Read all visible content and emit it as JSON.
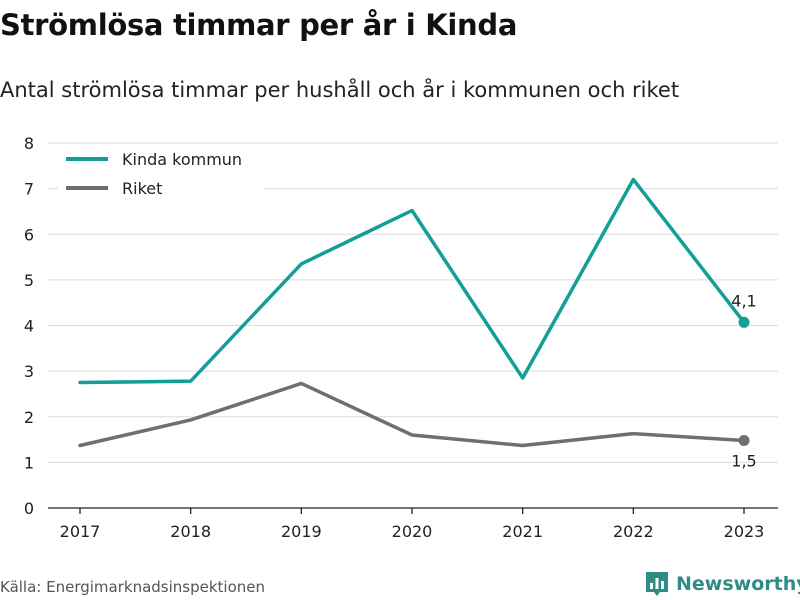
{
  "title": "Strömlösa timmar per år i Kinda",
  "subtitle": "Antal strömlösa timmar per hushåll och år i kommunen och riket",
  "source": "Källa: Energimarknadsinspektionen",
  "brand": {
    "name": "Newsworthy",
    "icon": "bar-chart-logo-icon",
    "color": "#2e8c84"
  },
  "chart_data": {
    "type": "line",
    "x": [
      "2017",
      "2018",
      "2019",
      "2020",
      "2021",
      "2022",
      "2023"
    ],
    "ylim": [
      0,
      8
    ],
    "yticks": [
      "0",
      "1",
      "2",
      "3",
      "4",
      "5",
      "6",
      "7",
      "8"
    ],
    "grid": true,
    "legend": "top-left",
    "series": [
      {
        "name": "Kinda kommun",
        "color": "#139e97",
        "values": [
          2.75,
          2.78,
          5.35,
          6.52,
          2.85,
          7.2,
          4.07
        ],
        "end_label": "4,1"
      },
      {
        "name": "Riket",
        "color": "#6f6e74",
        "values": [
          1.37,
          1.93,
          2.73,
          1.6,
          1.37,
          1.63,
          1.48
        ],
        "end_label": "1,5"
      }
    ]
  }
}
